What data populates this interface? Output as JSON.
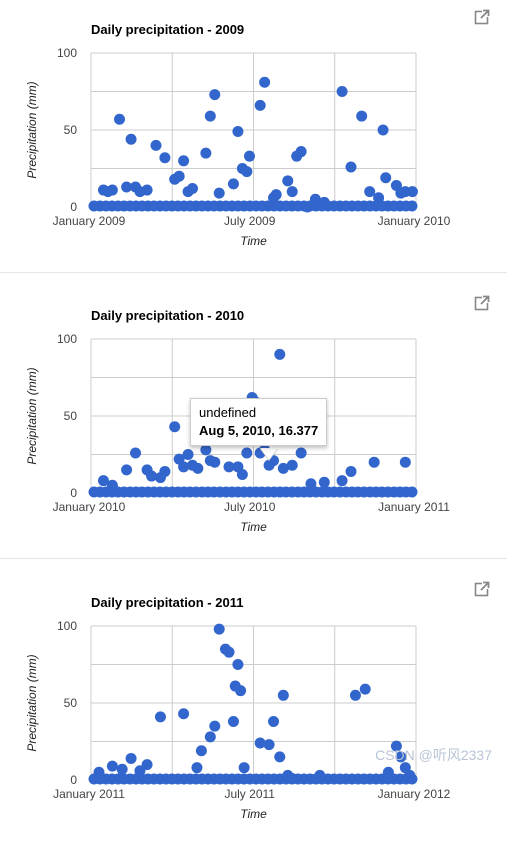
{
  "charts": [
    {
      "title": "Daily precipitation - 2009",
      "ylabel": "Precipitation (mm)",
      "xlabel": "Time",
      "x_ticks": [
        "January 2009",
        "July 2009",
        "January 2010"
      ],
      "y_ticks": [
        "100",
        "50",
        "0"
      ]
    },
    {
      "title": "Daily precipitation - 2010",
      "ylabel": "Precipitation (mm)",
      "xlabel": "Time",
      "x_ticks": [
        "January 2010",
        "July 2010",
        "January 2011"
      ],
      "y_ticks": [
        "100",
        "50",
        "0"
      ]
    },
    {
      "title": "Daily precipitation - 2011",
      "ylabel": "Precipitation (mm)",
      "xlabel": "Time",
      "x_ticks": [
        "January 2011",
        "July 2011",
        "January 2012"
      ],
      "y_ticks": [
        "100",
        "50",
        "0"
      ]
    }
  ],
  "tooltip": {
    "line1": "undefined",
    "line2": "Aug 5, 2010, 16.377"
  },
  "watermark": "CSDN @听风2337",
  "colors": {
    "point": "#3366cc",
    "grid": "#cccccc",
    "axis": "#333333"
  },
  "icons": {
    "popout": "open-in-new-icon"
  },
  "chart_data": [
    {
      "type": "scatter",
      "title": "Daily precipitation - 2009",
      "xlabel": "Time",
      "ylabel": "Precipitation (mm)",
      "xlim": [
        "2009-01-01",
        "2010-01-01"
      ],
      "ylim": [
        0,
        100
      ],
      "grid": true,
      "series": [
        {
          "x": [
            "2009-01-15",
            "2009-01-20",
            "2009-01-25",
            "2009-02-02",
            "2009-02-10",
            "2009-02-15",
            "2009-02-20",
            "2009-02-25",
            "2009-03-05",
            "2009-03-15",
            "2009-03-25",
            "2009-04-05",
            "2009-04-10",
            "2009-04-15",
            "2009-04-20",
            "2009-04-25",
            "2009-05-10",
            "2009-05-15",
            "2009-05-20",
            "2009-05-25",
            "2009-06-10",
            "2009-06-15",
            "2009-06-20",
            "2009-06-25",
            "2009-06-28",
            "2009-07-10",
            "2009-07-15",
            "2009-07-25",
            "2009-07-28",
            "2009-08-10",
            "2009-08-15",
            "2009-08-20",
            "2009-08-25",
            "2009-09-01",
            "2009-09-10",
            "2009-09-20",
            "2009-10-10",
            "2009-10-20",
            "2009-11-01",
            "2009-11-10",
            "2009-11-20",
            "2009-11-25",
            "2009-11-28",
            "2009-12-10",
            "2009-12-15",
            "2009-12-20",
            "2009-12-28"
          ],
          "y": [
            11,
            10,
            11,
            57,
            13,
            44,
            13,
            10,
            11,
            40,
            32,
            18,
            20,
            30,
            10,
            12,
            35,
            59,
            73,
            9,
            15,
            49,
            25,
            23,
            33,
            66,
            81,
            6,
            8,
            17,
            10,
            33,
            36,
            0,
            5,
            3,
            75,
            26,
            59,
            10,
            6,
            50,
            19,
            14,
            9,
            10,
            10
          ]
        }
      ]
    },
    {
      "type": "scatter",
      "title": "Daily precipitation - 2010",
      "xlabel": "Time",
      "ylabel": "Precipitation (mm)",
      "xlim": [
        "2010-01-01",
        "2011-01-01"
      ],
      "ylim": [
        0,
        100
      ],
      "grid": true,
      "series": [
        {
          "x": [
            "2010-01-15",
            "2010-01-25",
            "2010-02-10",
            "2010-02-20",
            "2010-03-05",
            "2010-03-10",
            "2010-03-20",
            "2010-03-25",
            "2010-04-05",
            "2010-04-10",
            "2010-04-15",
            "2010-04-20",
            "2010-04-25",
            "2010-05-01",
            "2010-05-10",
            "2010-05-15",
            "2010-05-20",
            "2010-06-01",
            "2010-06-05",
            "2010-06-10",
            "2010-06-15",
            "2010-06-20",
            "2010-06-25",
            "2010-07-01",
            "2010-07-05",
            "2010-07-10",
            "2010-07-15",
            "2010-07-20",
            "2010-07-25",
            "2010-08-01",
            "2010-08-05",
            "2010-08-15",
            "2010-08-25",
            "2010-09-05",
            "2010-09-20",
            "2010-10-10",
            "2010-10-20",
            "2010-11-15",
            "2010-12-20"
          ],
          "y": [
            8,
            5,
            15,
            26,
            15,
            11,
            10,
            14,
            43,
            22,
            17,
            25,
            18,
            16,
            28,
            21,
            20,
            55,
            17,
            55,
            17,
            12,
            26,
            62,
            59,
            26,
            28,
            18,
            21,
            90,
            16,
            18,
            26,
            6,
            7,
            8,
            14,
            20,
            20
          ]
        }
      ]
    },
    {
      "type": "scatter",
      "title": "Daily precipitation - 2011",
      "xlabel": "Time",
      "ylabel": "Precipitation (mm)",
      "xlim": [
        "2011-01-01",
        "2012-01-01"
      ],
      "ylim": [
        0,
        100
      ],
      "grid": true,
      "series": [
        {
          "x": [
            "2011-01-10",
            "2011-01-25",
            "2011-02-05",
            "2011-02-15",
            "2011-02-25",
            "2011-03-05",
            "2011-03-20",
            "2011-04-15",
            "2011-04-30",
            "2011-05-05",
            "2011-05-15",
            "2011-05-20",
            "2011-05-25",
            "2011-06-01",
            "2011-06-05",
            "2011-06-10",
            "2011-06-12",
            "2011-06-15",
            "2011-06-18",
            "2011-06-22",
            "2011-07-10",
            "2011-07-20",
            "2011-07-25",
            "2011-08-01",
            "2011-08-05",
            "2011-08-10",
            "2011-08-15",
            "2011-09-15",
            "2011-10-25",
            "2011-11-05",
            "2011-12-01",
            "2011-12-10",
            "2011-12-15",
            "2011-12-20",
            "2011-12-25"
          ],
          "y": [
            5,
            9,
            7,
            14,
            6,
            10,
            41,
            43,
            8,
            19,
            28,
            35,
            98,
            85,
            83,
            38,
            61,
            75,
            58,
            8,
            24,
            23,
            38,
            15,
            55,
            3,
            1,
            3,
            55,
            59,
            5,
            22,
            15,
            8,
            3
          ]
        }
      ]
    }
  ]
}
